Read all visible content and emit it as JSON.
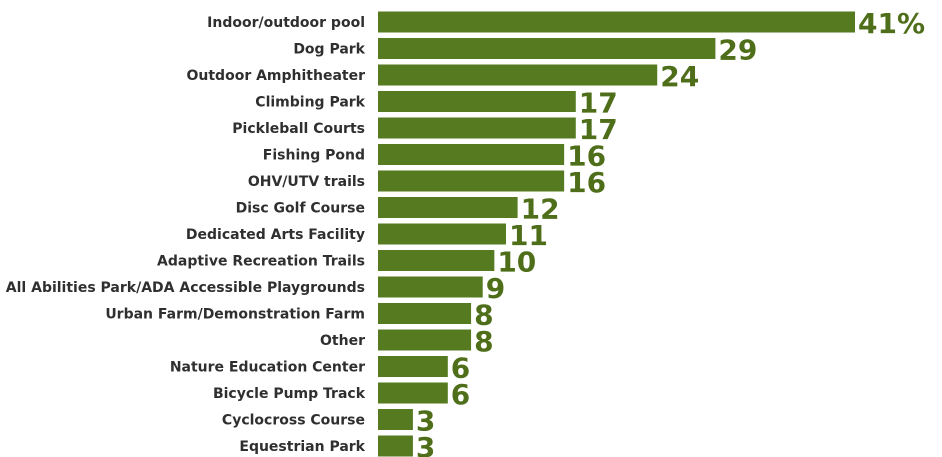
{
  "chart_data": {
    "type": "bar",
    "orientation": "horizontal",
    "title": "",
    "xlabel": "",
    "ylabel": "",
    "xlim": [
      0,
      41
    ],
    "grid": false,
    "legend": "none",
    "bar_color": "#557a1f",
    "value_label_color": "#4f6e19",
    "category_label_color": "#2f2f2f",
    "categories": [
      "Indoor/outdoor pool",
      "Dog Park",
      "Outdoor Amphitheater",
      "Climbing Park",
      "Pickleball Courts",
      "Fishing Pond",
      "OHV/UTV trails",
      "Disc Golf Course",
      "Dedicated Arts Facility",
      "Adaptive Recreation Trails",
      "All Abilities Park/ADA Accessible Playgrounds",
      "Urban Farm/Demonstration Farm",
      "Other",
      "Nature Education Center",
      "Bicycle Pump Track",
      "Cyclocross Course",
      "Equestrian Park"
    ],
    "values": [
      41,
      29,
      24,
      17,
      17,
      16,
      16,
      12,
      11,
      10,
      9,
      8,
      8,
      6,
      6,
      3,
      3
    ],
    "value_labels": [
      "41%",
      "29",
      "24",
      "17",
      "17",
      "16",
      "16",
      "12",
      "11",
      "10",
      "9",
      "8",
      "8",
      "6",
      "6",
      "3",
      "3"
    ]
  }
}
